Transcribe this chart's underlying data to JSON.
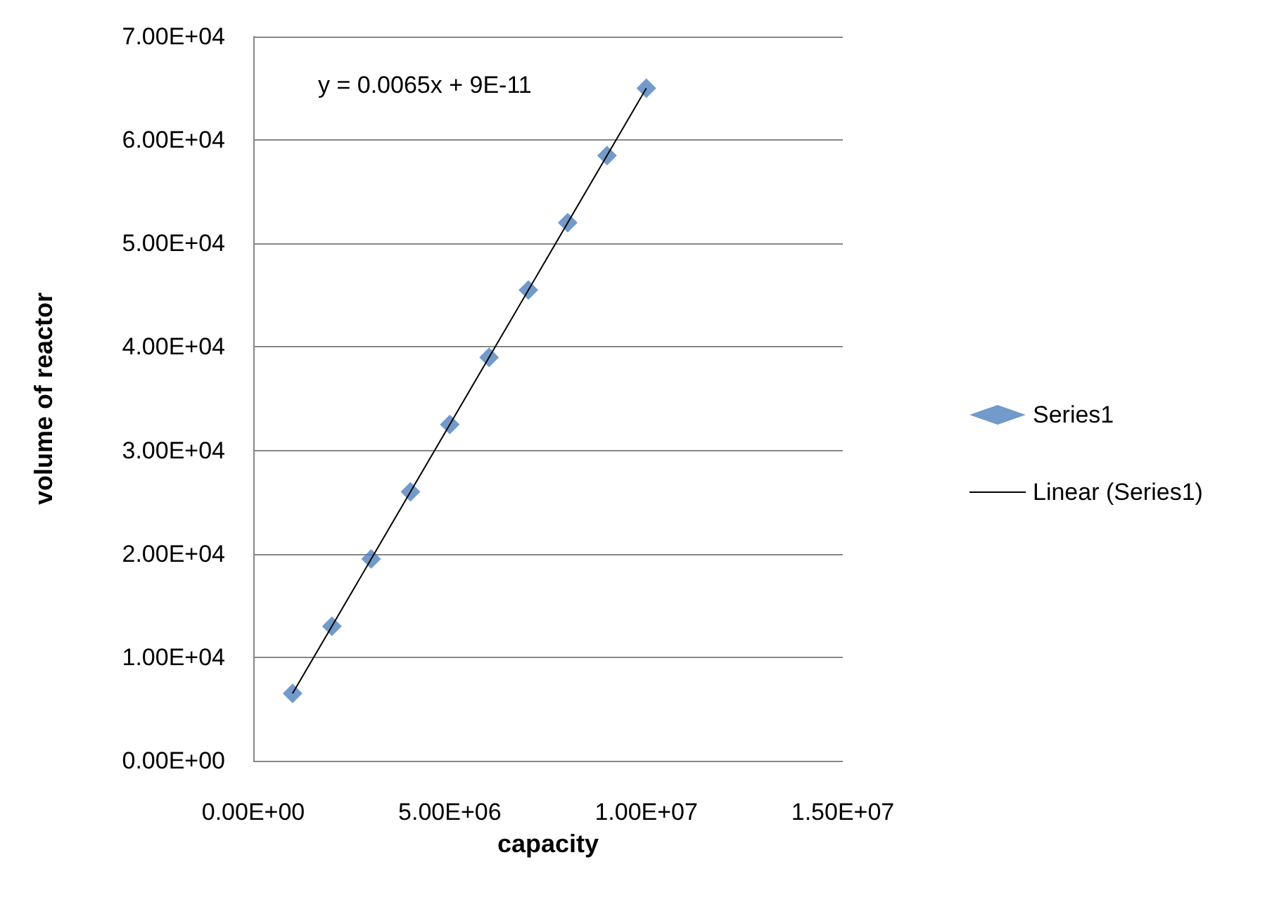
{
  "chart_data": {
    "type": "scatter",
    "xlabel": "capacity",
    "ylabel": "volume of reactor",
    "annotations": [
      "y = 0.0065x + 9E-11"
    ],
    "series": [
      {
        "name": "Series1",
        "color": "#4f81bd",
        "marker": "diamond",
        "x": [
          1000000,
          2000000,
          3000000,
          4000000,
          5000000,
          6000000,
          7000000,
          8000000,
          9000000,
          10000000
        ],
        "values": [
          6500,
          13000,
          19500,
          26000,
          32500,
          39000,
          45500,
          52000,
          58500,
          65000
        ]
      },
      {
        "name": "Linear (Series1)",
        "type": "line",
        "color": "#000000",
        "marker": "none",
        "line_style": "solid",
        "x": [
          1000000,
          10000000
        ],
        "values": [
          6500,
          65000
        ]
      }
    ],
    "xlim": [
      0,
      15000000
    ],
    "xticks": [
      {
        "value": 0,
        "label": "0.00E+00"
      },
      {
        "value": 5000000,
        "label": "5.00E+06"
      },
      {
        "value": 10000000,
        "label": "1.00E+07"
      },
      {
        "value": 15000000,
        "label": "1.50E+07"
      }
    ],
    "ylim": [
      0,
      70000
    ],
    "yticks": [
      {
        "value": 0,
        "label": "0.00E+00"
      },
      {
        "value": 10000,
        "label": "1.00E+04"
      },
      {
        "value": 20000,
        "label": "2.00E+04"
      },
      {
        "value": 30000,
        "label": "3.00E+04"
      },
      {
        "value": 40000,
        "label": "4.00E+04"
      },
      {
        "value": 50000,
        "label": "5.00E+04"
      },
      {
        "value": 60000,
        "label": "6.00E+04"
      },
      {
        "value": 70000,
        "label": "7.00E+04"
      }
    ],
    "grid": "y",
    "legend": "right"
  }
}
